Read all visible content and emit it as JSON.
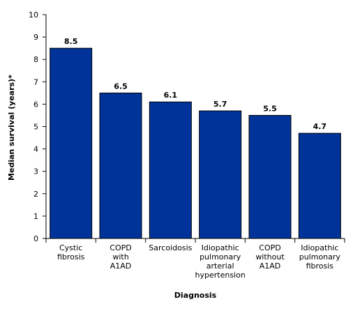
{
  "chart_data": {
    "type": "bar",
    "categories": [
      [
        "Cystic",
        "fibrosis"
      ],
      [
        "COPD",
        "with",
        "A1AD"
      ],
      [
        "Sarcoidosis"
      ],
      [
        "Idiopathic",
        "pulmonary",
        "arterial",
        "hypertension"
      ],
      [
        "COPD",
        "without",
        "A1AD"
      ],
      [
        "Idiopathic",
        "pulmonary",
        "fibrosis"
      ]
    ],
    "values": [
      8.5,
      6.5,
      6.1,
      5.7,
      5.5,
      4.7
    ],
    "value_labels": [
      "8.5",
      "6.5",
      "6.1",
      "5.7",
      "5.5",
      "4.7"
    ],
    "title": "",
    "xlabel": "Diagnosis",
    "ylabel": "Median survival (years)*",
    "ylim": [
      0,
      10
    ],
    "yticks": [
      0,
      1,
      2,
      3,
      4,
      5,
      6,
      7,
      8,
      9,
      10
    ],
    "grid": false,
    "bar_color": "#003399",
    "bar_edge_color": "#000000"
  }
}
